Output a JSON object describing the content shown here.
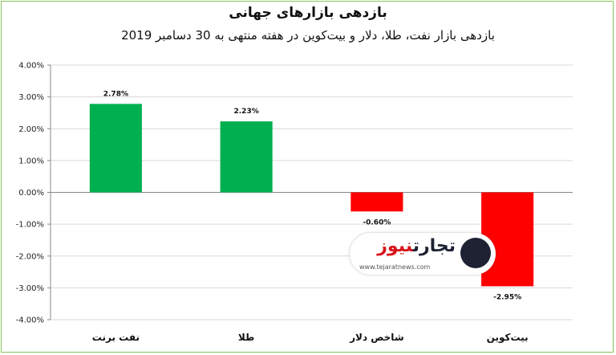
{
  "chart_data": {
    "type": "bar",
    "title": "بازدهی بازارهای جهانی",
    "subtitle": "بازدهی بازار نفت، طلا، دلار و بیت‌کوین در هفته منتهی به 30 دسامبر 2019",
    "categories": [
      "نفت برنت",
      "طلا",
      "شاخص دلار",
      "بیت‌کوین"
    ],
    "values": [
      2.78,
      2.23,
      -0.6,
      -2.95
    ],
    "data_labels": [
      "2.78%",
      "2.23%",
      "-0.60%",
      "-2.95%"
    ],
    "ylim": [
      -4,
      4
    ],
    "y_ticks": [
      "-4.00%",
      "-3.00%",
      "-2.00%",
      "-1.00%",
      "0.00%",
      "1.00%",
      "2.00%",
      "3.00%",
      "4.00%"
    ],
    "grid": true,
    "colors": {
      "positive": "#00b050",
      "negative": "#ff0000",
      "border": "#86c55a"
    }
  },
  "watermark": {
    "name_part1": "تجارت",
    "name_part2": "نیوز",
    "url": "www.tejaratnews.com"
  }
}
